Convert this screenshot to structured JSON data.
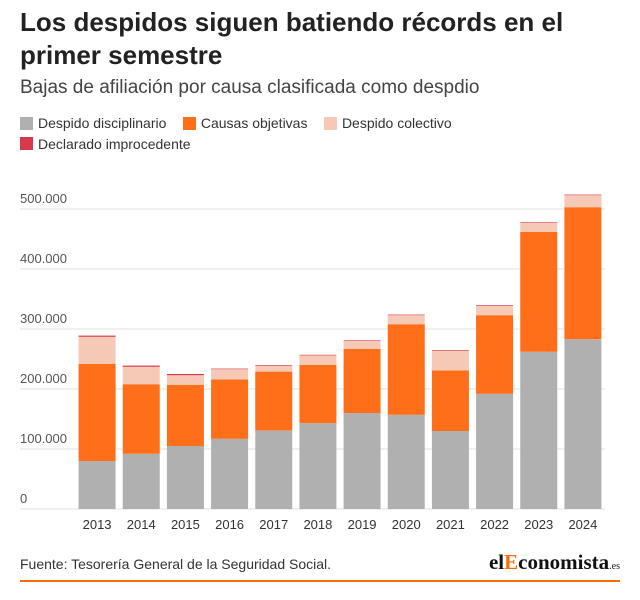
{
  "title": "Los despidos siguen batiendo récords en el primer semestre",
  "subtitle": "Bajas de afiliación por causa clasificada como despdio",
  "source": "Fuente: Tesorería General de la Seguridad Social.",
  "logo": {
    "pre": "el",
    "accent": "E",
    "post": "conomista",
    "suffix": ".es"
  },
  "colors": {
    "disciplinario": "#b0b0b0",
    "objetivas": "#ff6f1a",
    "colectivo": "#f5c9b5",
    "improcedente": "#d63a4a",
    "brand": "#ff6b00"
  },
  "chart_data": {
    "type": "bar",
    "stacked": true,
    "categories": [
      "2013",
      "2014",
      "2015",
      "2016",
      "2017",
      "2018",
      "2019",
      "2020",
      "2021",
      "2022",
      "2023",
      "2024"
    ],
    "series": [
      {
        "name": "Despido disciplinario",
        "color": "#b0b0b0",
        "values": [
          80000,
          92000,
          105000,
          117000,
          131000,
          143000,
          160000,
          157000,
          130000,
          192000,
          262000,
          283000
        ]
      },
      {
        "name": "Causas objetivas",
        "color": "#ff6f1a",
        "values": [
          162000,
          116000,
          102000,
          99000,
          98000,
          97000,
          107000,
          151000,
          101000,
          131000,
          200000,
          220000
        ]
      },
      {
        "name": "Despido colectivo",
        "color": "#f5c9b5",
        "values": [
          45000,
          29000,
          16000,
          17000,
          10000,
          16000,
          13000,
          15000,
          33000,
          16000,
          15000,
          20000
        ]
      },
      {
        "name": "Declarado improcedente",
        "color": "#d63a4a",
        "values": [
          2000,
          2000,
          2000,
          1000,
          1000,
          1000,
          1000,
          1000,
          1000,
          1000,
          1000,
          1000
        ]
      }
    ],
    "y_ticks": [
      "0",
      "100.000",
      "200.000",
      "300.000",
      "400.000",
      "500.000"
    ],
    "y_tick_values": [
      0,
      100000,
      200000,
      300000,
      400000,
      500000
    ],
    "ylim": [
      0,
      500000
    ],
    "grid": true,
    "legend_position": "top-left"
  }
}
